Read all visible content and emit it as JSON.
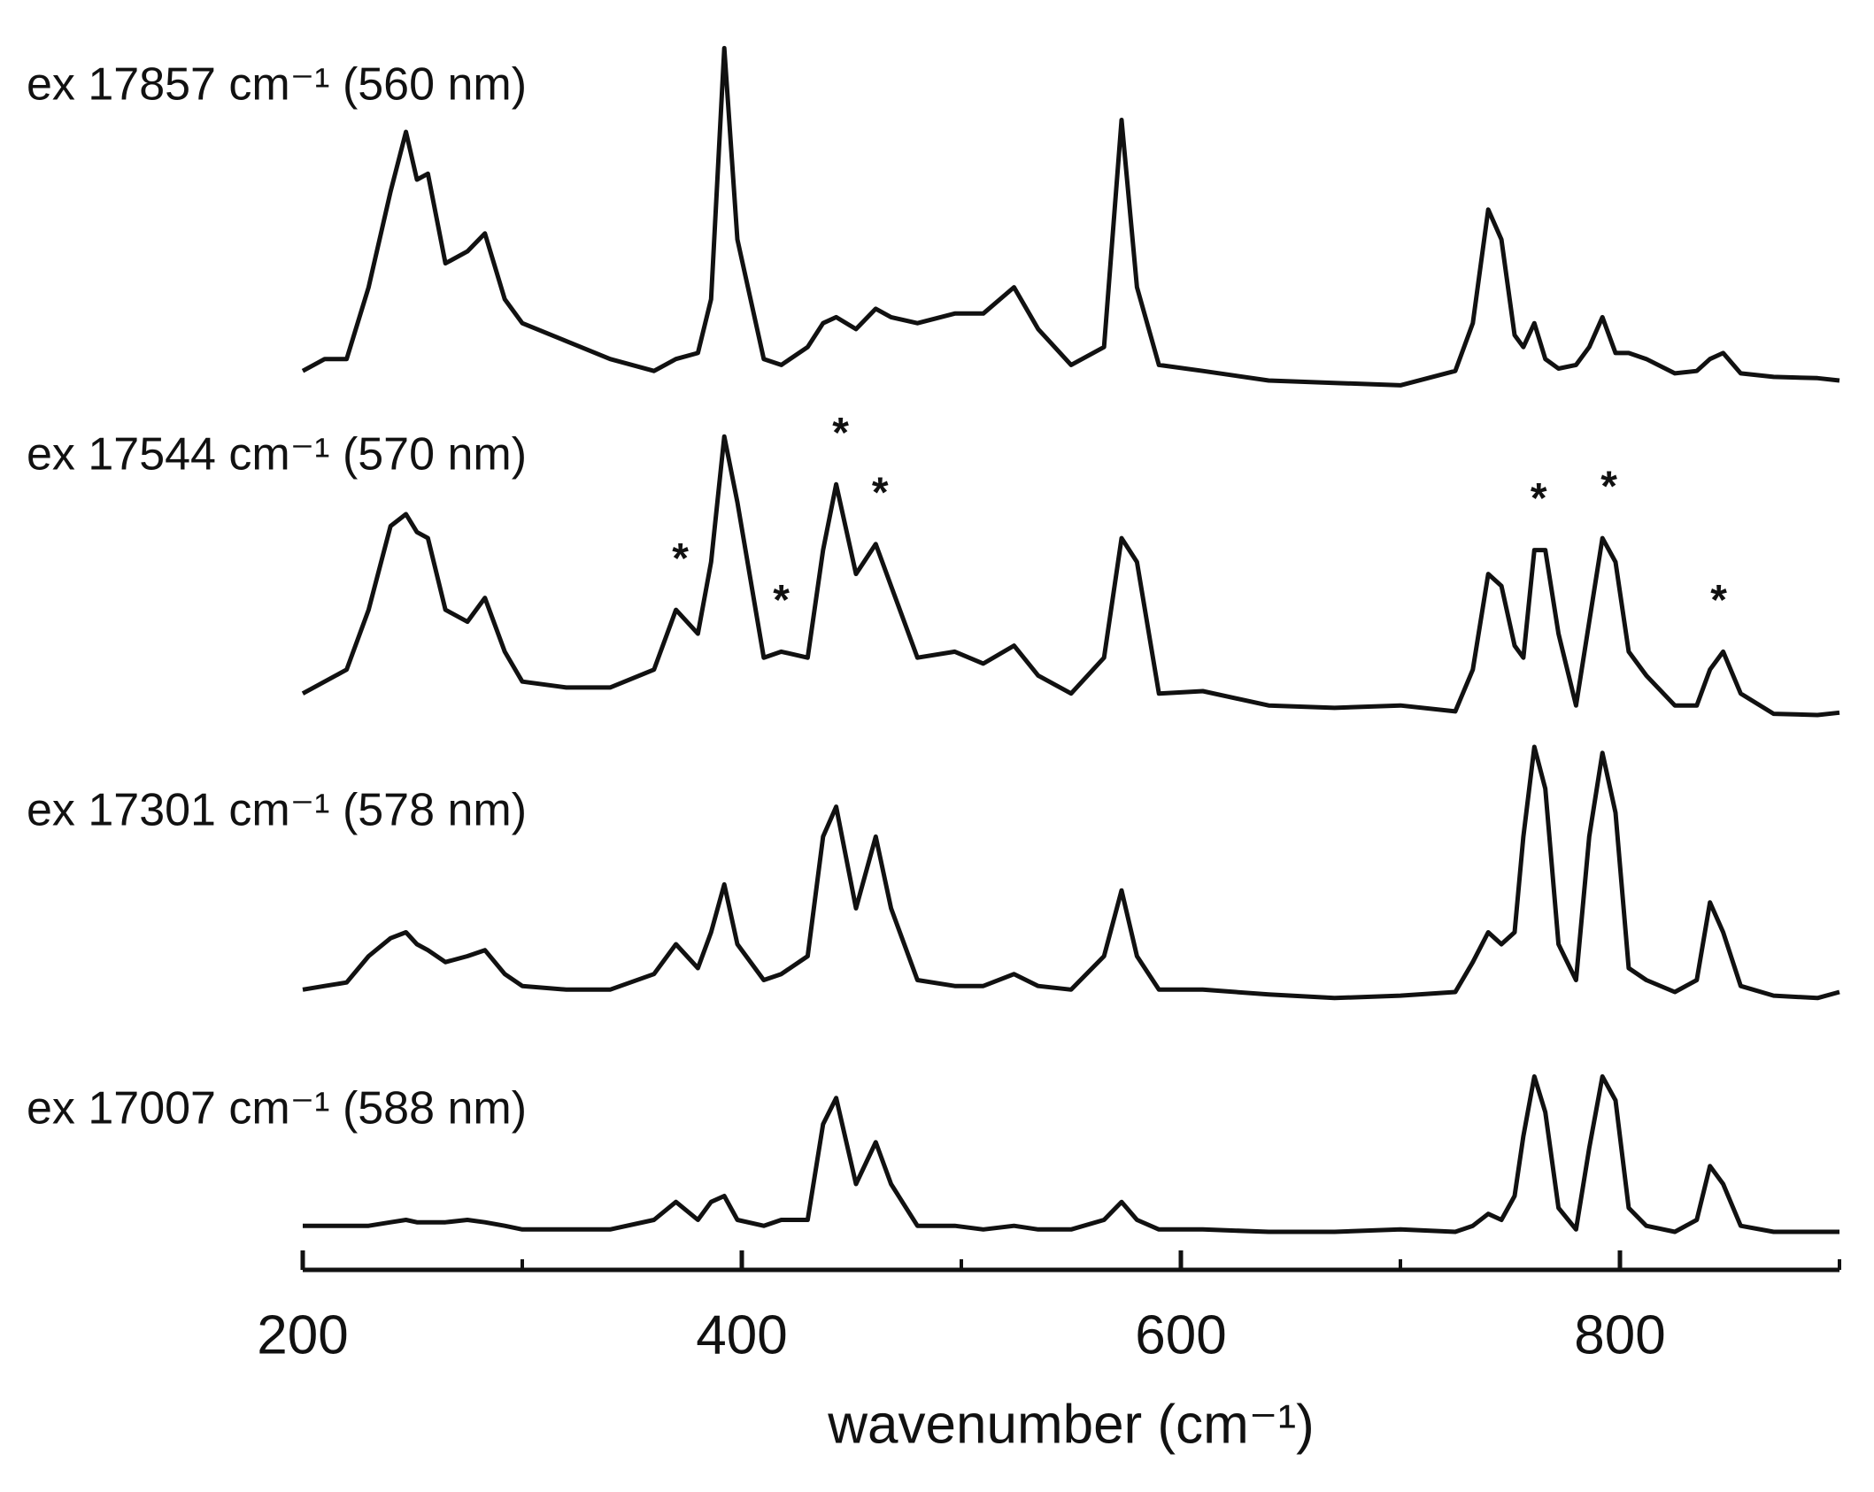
{
  "chart_data": {
    "type": "line",
    "xlabel": "wavenumber (cm⁻¹)",
    "xlim": [
      200,
      900
    ],
    "xticks": [
      200,
      400,
      600,
      800
    ],
    "xminorticks": [
      300,
      500,
      700,
      900
    ],
    "x": [
      200,
      210,
      220,
      230,
      240,
      247,
      252,
      257,
      265,
      275,
      283,
      292,
      300,
      320,
      340,
      360,
      370,
      380,
      386,
      392,
      398,
      410,
      418,
      430,
      437,
      443,
      452,
      461,
      468,
      480,
      497,
      510,
      524,
      535,
      550,
      565,
      573,
      580,
      590,
      610,
      640,
      670,
      700,
      725,
      733,
      740,
      746,
      752,
      756,
      761,
      766,
      772,
      780,
      786,
      792,
      798,
      804,
      812,
      825,
      835,
      841,
      847,
      855,
      870,
      890,
      900
    ],
    "series": [
      {
        "name": "ex 17857 cm⁻¹ (560 nm)",
        "color": "#111111",
        "values": [
          8,
          18,
          18,
          78,
          158,
          208,
          168,
          173,
          98,
          108,
          123,
          68,
          48,
          33,
          18,
          8,
          18,
          23,
          68,
          278,
          118,
          18,
          13,
          28,
          48,
          53,
          43,
          60,
          53,
          48,
          56,
          56,
          78,
          43,
          13,
          28,
          218,
          78,
          13,
          8,
          0,
          -2,
          -4,
          8,
          48,
          143,
          118,
          38,
          28,
          48,
          18,
          10,
          13,
          28,
          53,
          23,
          23,
          18,
          6,
          8,
          18,
          23,
          6,
          3,
          2,
          0
        ]
      },
      {
        "name": "ex 17544 cm⁻¹ (570 nm)",
        "color": "#111111",
        "values": [
          18,
          28,
          38,
          88,
          158,
          168,
          153,
          148,
          88,
          78,
          98,
          53,
          28,
          23,
          23,
          38,
          88,
          68,
          128,
          233,
          178,
          48,
          53,
          48,
          138,
          193,
          118,
          143,
          108,
          48,
          53,
          43,
          58,
          33,
          18,
          48,
          148,
          128,
          18,
          20,
          8,
          6,
          8,
          3,
          38,
          118,
          108,
          58,
          48,
          138,
          138,
          68,
          8,
          78,
          148,
          128,
          53,
          33,
          8,
          8,
          38,
          53,
          18,
          1,
          0,
          2
        ],
        "markers": [
          {
            "x": 372,
            "text": "*"
          },
          {
            "x": 418,
            "text": "*"
          },
          {
            "x": 445,
            "text": "*"
          },
          {
            "x": 463,
            "text": "*"
          },
          {
            "x": 763,
            "text": "*"
          },
          {
            "x": 795,
            "text": "*"
          },
          {
            "x": 845,
            "text": "*"
          }
        ]
      },
      {
        "name": "ex 17301 cm⁻¹ (578 nm)",
        "color": "#111111",
        "values": [
          2,
          5,
          8,
          30,
          45,
          50,
          40,
          35,
          25,
          30,
          35,
          15,
          5,
          2,
          2,
          15,
          40,
          20,
          50,
          90,
          40,
          10,
          15,
          30,
          130,
          155,
          70,
          130,
          70,
          10,
          5,
          5,
          15,
          5,
          2,
          30,
          85,
          30,
          2,
          2,
          -2,
          -5,
          -3,
          0,
          25,
          50,
          40,
          50,
          130,
          205,
          170,
          40,
          10,
          130,
          200,
          150,
          20,
          10,
          0,
          10,
          75,
          50,
          5,
          -3,
          -5,
          0
        ]
      },
      {
        "name": "ex 17007 cm⁻¹ (588 nm)",
        "color": "#111111",
        "values": [
          5,
          5,
          5,
          5,
          8,
          10,
          8,
          8,
          8,
          10,
          8,
          5,
          2,
          2,
          2,
          10,
          25,
          10,
          25,
          30,
          10,
          5,
          10,
          10,
          90,
          112,
          40,
          75,
          40,
          5,
          5,
          2,
          5,
          2,
          2,
          10,
          25,
          10,
          2,
          2,
          0,
          0,
          2,
          0,
          5,
          15,
          10,
          30,
          80,
          130,
          100,
          20,
          2,
          70,
          130,
          110,
          20,
          5,
          0,
          10,
          55,
          40,
          5,
          0,
          0,
          0
        ]
      }
    ]
  }
}
